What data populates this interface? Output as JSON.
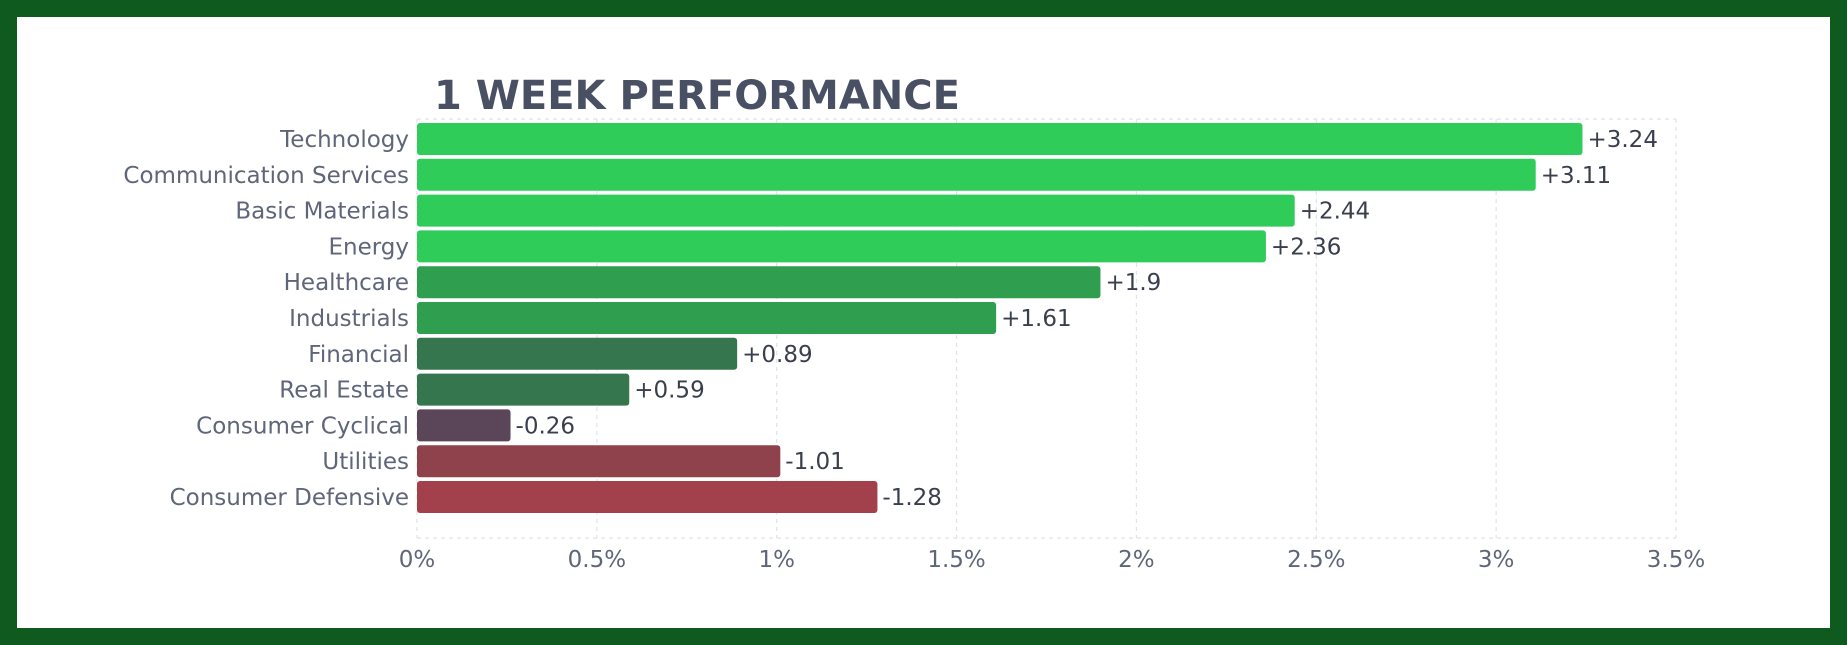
{
  "chart_data": {
    "type": "bar",
    "orientation": "horizontal",
    "title": "1 WEEK PERFORMANCE",
    "categories": [
      "Technology",
      "Communication Services",
      "Basic Materials",
      "Energy",
      "Healthcare",
      "Industrials",
      "Financial",
      "Real Estate",
      "Consumer Cyclical",
      "Utilities",
      "Consumer Defensive"
    ],
    "values": [
      3.24,
      3.11,
      2.44,
      2.36,
      1.9,
      1.61,
      0.89,
      0.59,
      -0.26,
      -1.01,
      -1.28
    ],
    "value_labels": [
      "+3.24",
      "+3.11",
      "+2.44",
      "+2.36",
      "+1.9",
      "+1.61",
      "+0.89",
      "+0.59",
      "-0.26",
      "-1.01",
      "-1.28"
    ],
    "bar_colors": [
      "#30cc5a",
      "#30cc5a",
      "#30cc5a",
      "#30cc5a",
      "#2f9e4f",
      "#2f9e4f",
      "#35764e",
      "#35764e",
      "#5a4658",
      "#8f424c",
      "#a2414b"
    ],
    "xlabel": "",
    "ylabel": "",
    "xlim": [
      0,
      3.5
    ],
    "xticks": [
      0,
      0.5,
      1,
      1.5,
      2,
      2.5,
      3,
      3.5
    ],
    "xtick_labels": [
      "0%",
      "0.5%",
      "1%",
      "1.5%",
      "2%",
      "2.5%",
      "3%",
      "3.5%"
    ],
    "scale": "magnitude (absolute value)",
    "grid": true,
    "legend": "none"
  }
}
